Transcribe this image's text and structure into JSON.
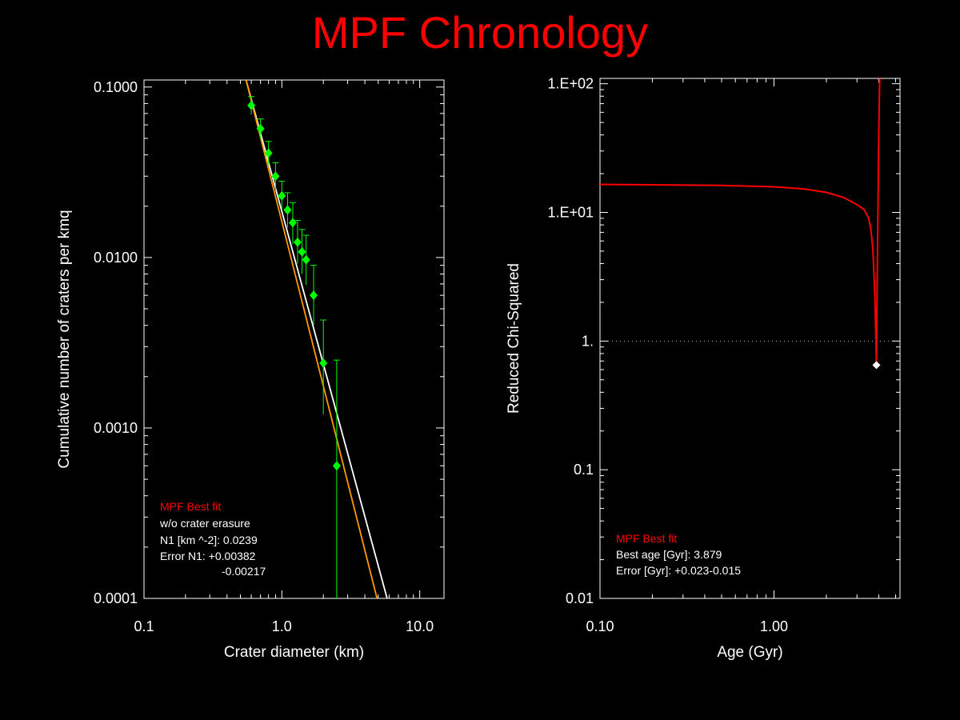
{
  "title": "MPF Chronology",
  "colors": {
    "title": "#ff0000",
    "data_points": "#00ff00",
    "fit_line": "#ffffff",
    "alt_line": "#ff9900",
    "chi_curve": "#ff0000",
    "min_marker": "#ffffff",
    "legend_title": "#ff0000",
    "axes": "#ffffff"
  },
  "chart_data": [
    {
      "type": "scatter",
      "xlabel": "Crater diameter (km)",
      "ylabel": "Cumulative number of craters per kmq",
      "xscale": "log",
      "yscale": "log",
      "xlim": [
        0.1,
        15
      ],
      "ylim": [
        0.0001,
        0.11
      ],
      "xticks": [
        0.1,
        1.0,
        10.0
      ],
      "xtick_labels": [
        "0.1",
        "1.0",
        "10.0"
      ],
      "yticks": [
        0.0001,
        0.001,
        0.01,
        0.1
      ],
      "ytick_labels": [
        "0.0001",
        "0.0010",
        "0.0100",
        "0.1000"
      ],
      "points": [
        {
          "x": 0.6,
          "y": 0.078,
          "lo": 0.069,
          "hi": 0.088
        },
        {
          "x": 0.7,
          "y": 0.057,
          "lo": 0.05,
          "hi": 0.065
        },
        {
          "x": 0.8,
          "y": 0.041,
          "lo": 0.035,
          "hi": 0.048
        },
        {
          "x": 0.9,
          "y": 0.03,
          "lo": 0.025,
          "hi": 0.036
        },
        {
          "x": 1.0,
          "y": 0.023,
          "lo": 0.019,
          "hi": 0.028
        },
        {
          "x": 1.1,
          "y": 0.019,
          "lo": 0.015,
          "hi": 0.024
        },
        {
          "x": 1.2,
          "y": 0.016,
          "lo": 0.012,
          "hi": 0.021
        },
        {
          "x": 1.3,
          "y": 0.0123,
          "lo": 0.0092,
          "hi": 0.0165
        },
        {
          "x": 1.4,
          "y": 0.0108,
          "lo": 0.008,
          "hi": 0.0146
        },
        {
          "x": 1.5,
          "y": 0.0097,
          "lo": 0.0069,
          "hi": 0.0135
        },
        {
          "x": 1.7,
          "y": 0.006,
          "lo": 0.004,
          "hi": 0.009
        },
        {
          "x": 2.0,
          "y": 0.0024,
          "lo": 0.0012,
          "hi": 0.0043
        },
        {
          "x": 2.5,
          "y": 0.0006,
          "lo": 0.0001,
          "hi": 0.0025
        }
      ],
      "lines": [
        {
          "color": "#ffffff",
          "x": [
            0.55,
            5.8
          ],
          "y": [
            0.11,
            0.0001
          ]
        },
        {
          "color": "#ff9900",
          "x": [
            0.55,
            4.9
          ],
          "y": [
            0.11,
            0.0001
          ]
        }
      ],
      "legend": {
        "title": "MPF Best fit",
        "lines": [
          "w/o crater erasure",
          "N1 [km ^-2]: 0.0239",
          "Error N1: +0.00382",
          "-0.00217"
        ]
      }
    },
    {
      "type": "line",
      "xlabel": "Age (Gyr)",
      "ylabel": "Reduced Chi-Squared",
      "xscale": "log",
      "yscale": "log",
      "xlim": [
        0.1,
        5.3
      ],
      "ylim": [
        0.01,
        110
      ],
      "xticks": [
        0.1,
        1.0
      ],
      "xtick_labels": [
        "0.10",
        "1.00"
      ],
      "yticks": [
        0.01,
        0.1,
        1,
        10,
        100
      ],
      "ytick_labels": [
        "0.01",
        "0.1",
        "1.",
        "1.E+01",
        "1.E+02"
      ],
      "reference_line_y": 1,
      "curve": {
        "x": [
          0.1,
          0.2,
          0.5,
          1.0,
          1.5,
          2.0,
          2.5,
          3.0,
          3.3,
          3.5,
          3.6,
          3.7,
          3.75,
          3.8,
          3.85,
          3.879,
          3.9,
          3.95,
          4.0,
          4.05
        ],
        "y": [
          16.5,
          16.4,
          16.2,
          15.8,
          15.2,
          14.3,
          13.1,
          11.5,
          10.5,
          9.0,
          7.5,
          5.2,
          3.5,
          2.2,
          1.1,
          0.65,
          1.5,
          8.0,
          40.0,
          110.0
        ]
      },
      "minimum": {
        "x": 3.879,
        "y": 0.65
      },
      "legend": {
        "title": "MPF Best fit",
        "lines": [
          "Best age [Gyr]: 3.879",
          "Error [Gyr]: +0.023-0.015"
        ]
      }
    }
  ]
}
